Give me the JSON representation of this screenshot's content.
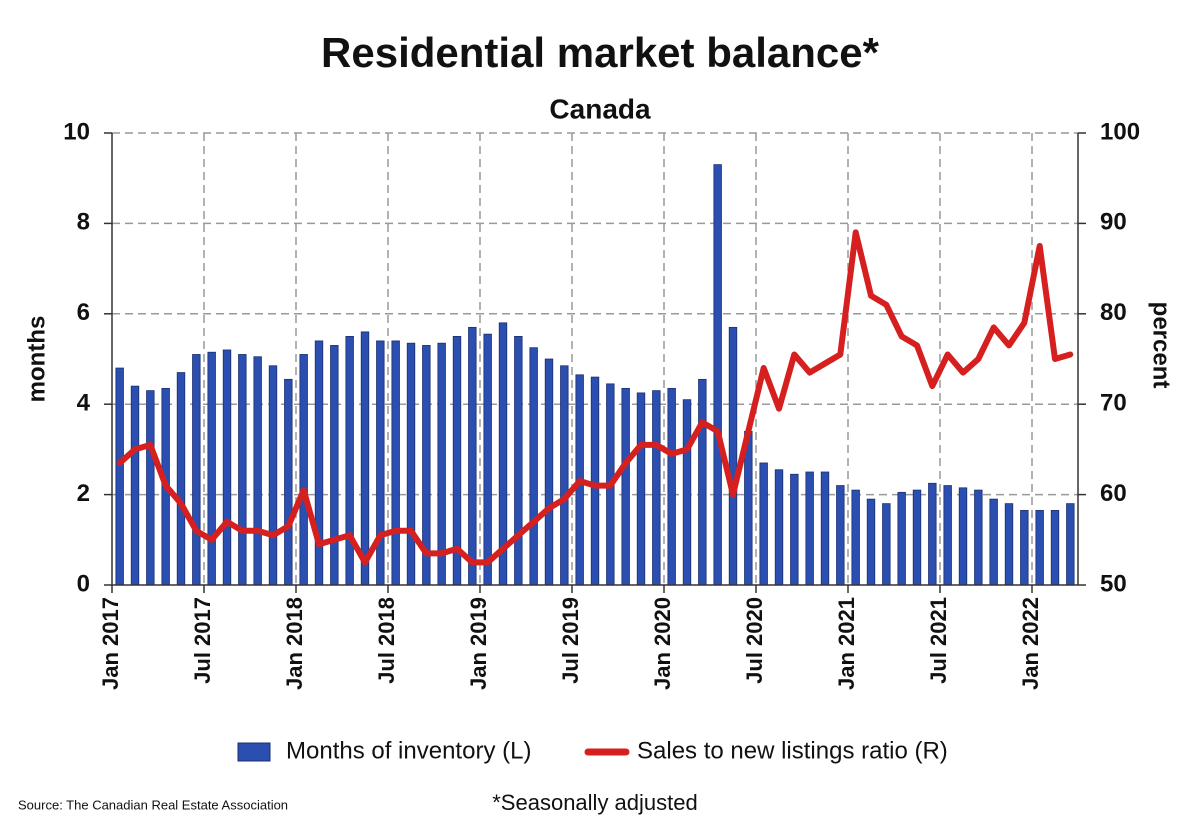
{
  "chart_data": {
    "type": "bar_line",
    "title": "Residential market balance*",
    "subtitle": "Canada",
    "ylabel": "months",
    "y2label": "percent",
    "source": "Source: The Canadian Real Estate Association",
    "footnote": "*Seasonally adjusted",
    "categories": [
      "Jan 2017",
      null,
      null,
      null,
      null,
      null,
      "Jul 2017",
      null,
      null,
      null,
      null,
      null,
      "Jan 2018",
      null,
      null,
      null,
      null,
      null,
      "Jul 2018",
      null,
      null,
      null,
      null,
      null,
      "Jan 2019",
      null,
      null,
      null,
      null,
      null,
      "Jul 2019",
      null,
      null,
      null,
      null,
      null,
      "Jan 2020",
      null,
      null,
      null,
      null,
      null,
      "Jul 2020",
      null,
      null,
      null,
      null,
      null,
      "Jan 2021",
      null,
      null,
      null,
      null,
      null,
      "Jul 2021",
      null,
      null,
      null,
      null,
      null,
      "Jan 2022",
      null,
      null
    ],
    "series": [
      {
        "name": "Months of inventory (L)",
        "kind": "bar",
        "color": "#2b4fb0",
        "values": [
          4.8,
          4.4,
          4.3,
          4.35,
          4.7,
          5.1,
          5.15,
          5.2,
          5.1,
          5.05,
          4.85,
          4.55,
          5.1,
          5.4,
          5.3,
          5.5,
          5.6,
          5.4,
          5.4,
          5.35,
          5.3,
          5.35,
          5.5,
          5.7,
          5.55,
          5.8,
          5.5,
          5.25,
          5.0,
          4.85,
          4.65,
          4.6,
          4.45,
          4.35,
          4.25,
          4.3,
          4.35,
          4.1,
          4.55,
          9.3,
          5.7,
          3.4,
          2.7,
          2.55,
          2.45,
          2.5,
          2.5,
          2.2,
          2.1,
          1.9,
          1.8,
          2.05,
          2.1,
          2.25,
          2.2,
          2.15,
          2.1,
          1.9,
          1.8,
          1.65,
          1.65,
          1.65,
          1.8
        ]
      },
      {
        "name": "Sales to new listings ratio (R)",
        "kind": "line",
        "axis": "y2",
        "color": "#d62020",
        "values": [
          63.5,
          65,
          65.5,
          61,
          59,
          56,
          55,
          57,
          56,
          56,
          55.5,
          56.5,
          60.5,
          54.5,
          55,
          55.5,
          52.5,
          55.5,
          56,
          56,
          53.5,
          53.5,
          54,
          52.5,
          52.5,
          54,
          55.5,
          57,
          58.5,
          59.5,
          61.5,
          61,
          61,
          63.5,
          65.5,
          65.5,
          64.5,
          65,
          68,
          67,
          60,
          67,
          74,
          69.5,
          75.5,
          73.5,
          74.5,
          75.5,
          89,
          82,
          81,
          77.5,
          76.5,
          72,
          75.5,
          73.5,
          75,
          78.5,
          76.5,
          79,
          87.5,
          75,
          75.5
        ]
      }
    ],
    "ylim": [
      0,
      10
    ],
    "yticks": [
      0,
      2,
      4,
      6,
      8,
      10
    ],
    "y2lim": [
      50,
      100
    ],
    "y2ticks": [
      50,
      60,
      70,
      80,
      90,
      100
    ],
    "grid": true,
    "legend": "bottom"
  }
}
